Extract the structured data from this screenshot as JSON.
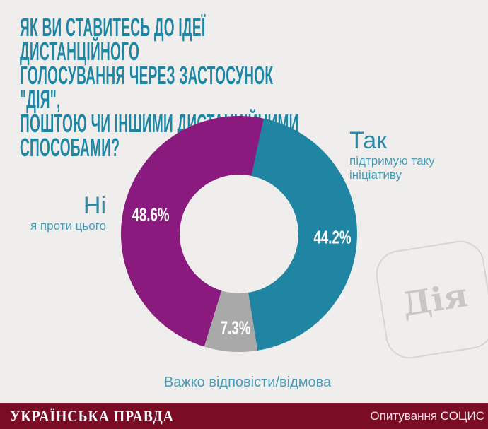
{
  "page": {
    "background": "#efeeec"
  },
  "title": {
    "color": "#1d86a5",
    "lines": [
      "ЯК ВИ СТАВИТЕСЬ ДО ІДЕЇ ДИСТАНЦІЙНОГО",
      "ГОЛОСУВАННЯ ЧЕРЕЗ ЗАСТОСУНОК \"ДІЯ\",",
      "ПОШТОЮ ЧИ ІНШИМИ ДИСТАНЦІЙНИМИ",
      "СПОСОБАМИ?"
    ]
  },
  "chart_data": {
    "type": "pie",
    "variant": "donut",
    "title": "ЯК ВИ СТАВИТЕСЬ ДО ІДЕЇ ДИСТАНЦІЙНОГО ГОЛОСУВАННЯ ЧЕРЕЗ ЗАСТОСУНОК \"ДІЯ\", ПОШТОЮ ЧИ ІНШИМИ ДИСТАНЦІЙНИМИ СПОСОБАМИ?",
    "start_angle_deg": 12,
    "direction": "clockwise",
    "segments": [
      {
        "label": "Так",
        "sublabel": "підтримую таку ініціативу",
        "value": 44.2,
        "value_label": "44.2%",
        "color": "#1f85a3"
      },
      {
        "label": "Важко відповісти/відмова",
        "sublabel": "",
        "value": 7.3,
        "value_label": "7.3%",
        "color": "#a9a9a9"
      },
      {
        "label": "Ні",
        "sublabel": "я проти цього",
        "value": 48.6,
        "value_label": "48.6%",
        "color": "#8a1a7d"
      }
    ]
  },
  "badge": {
    "text": "Дія"
  },
  "footer": {
    "background": "#7a0c26",
    "brand": "УКРАЇНСЬКА ПРАВДА",
    "source": "Опитування СОЦИС"
  }
}
